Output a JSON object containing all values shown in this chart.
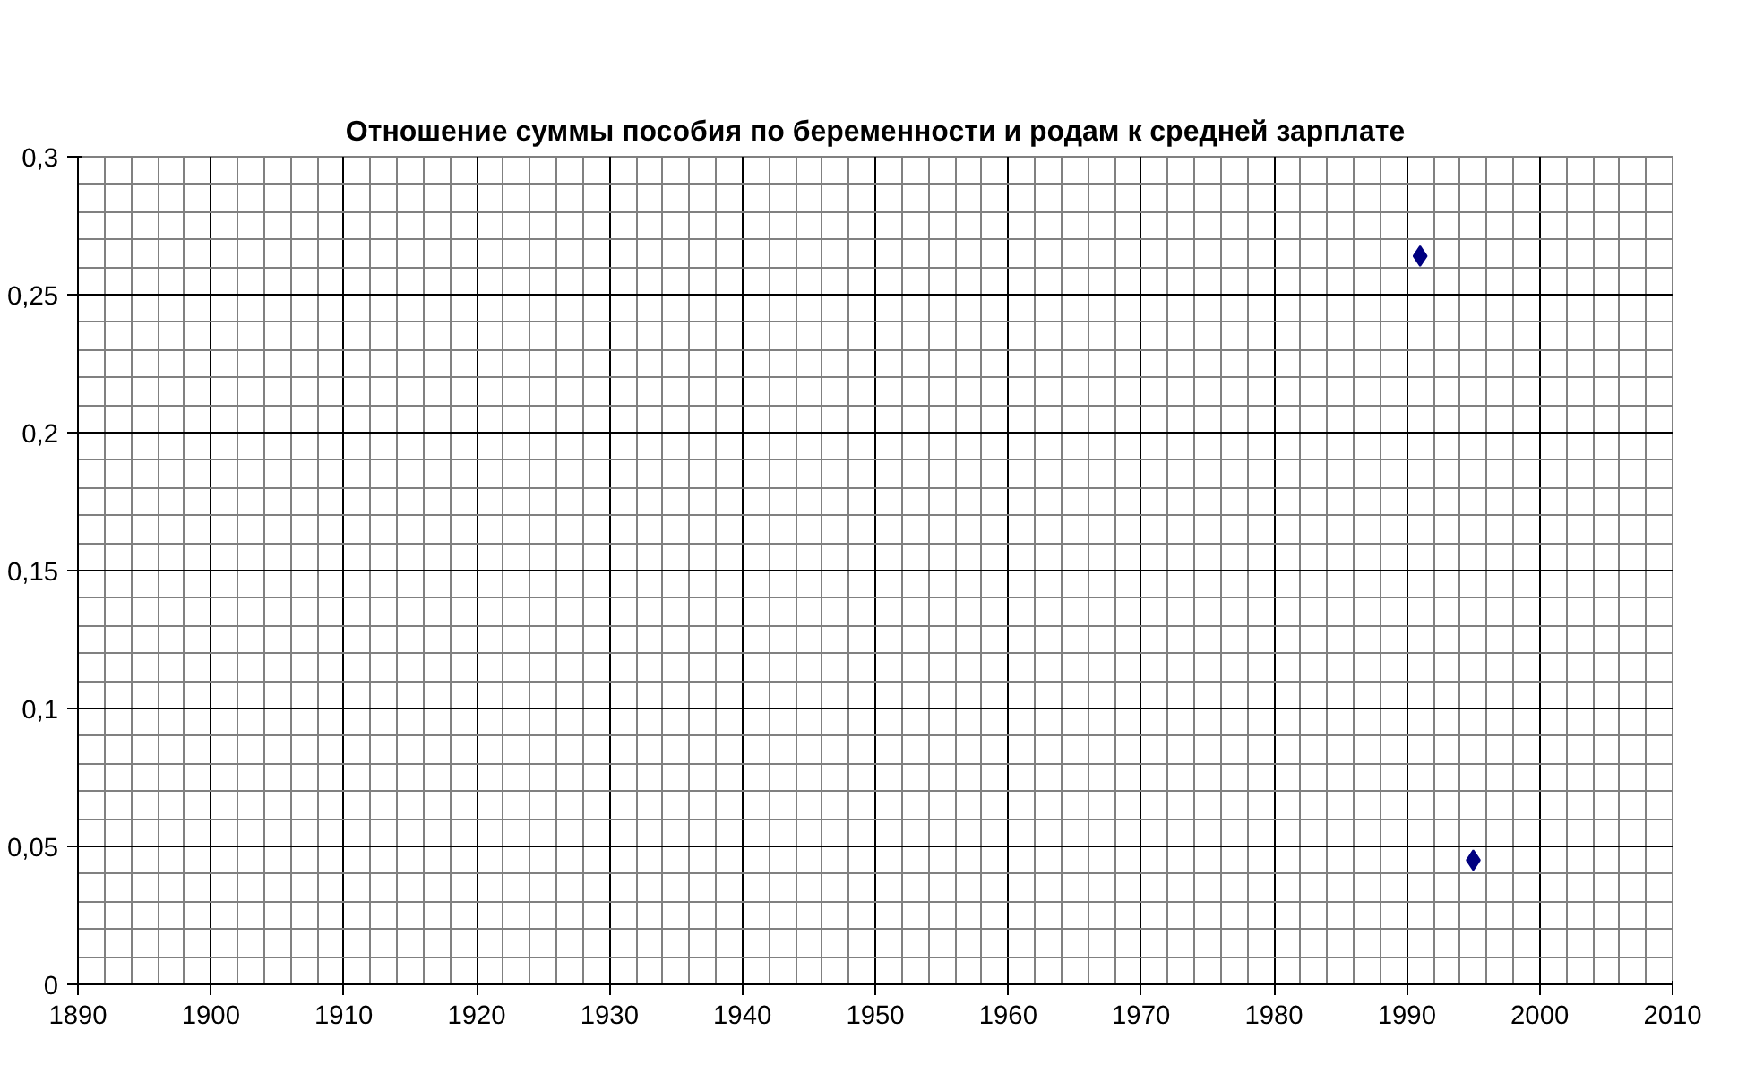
{
  "chart_data": {
    "type": "scatter",
    "title": "Отношение суммы пособия по беременности и родам к средней зарплате",
    "x": [
      1991,
      1995
    ],
    "series": [
      {
        "color": "#000080",
        "values": [
          0.264,
          0.045
        ]
      }
    ],
    "marker": "diamond",
    "grid": true,
    "xlim": [
      1890,
      2010
    ],
    "xticks": [
      1890,
      1900,
      1910,
      1920,
      1930,
      1940,
      1950,
      1960,
      1970,
      1980,
      1990,
      2000,
      2010
    ],
    "ylim": [
      0,
      0.3
    ],
    "yticks": [
      0,
      {
        "value": 0.05,
        "label": "0,05"
      },
      {
        "value": 0.1,
        "label": "0,1"
      },
      {
        "value": 0.15,
        "label": "0,15"
      },
      {
        "value": 0.2,
        "label": "0,2"
      },
      {
        "value": 0.25,
        "label": "0,25"
      },
      {
        "value": 0.3,
        "label": "0,3"
      }
    ]
  }
}
